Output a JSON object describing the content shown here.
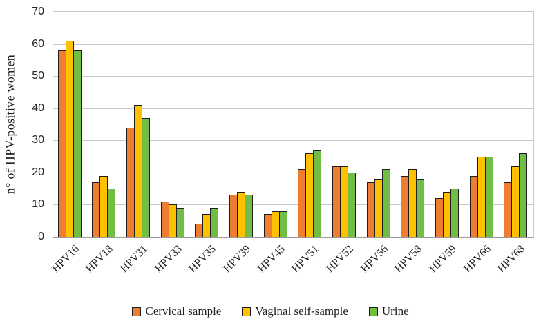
{
  "chart_data": {
    "type": "bar",
    "title": "",
    "xlabel": "",
    "ylabel": "n° of HPV-positive women",
    "ylim": [
      0,
      70
    ],
    "ytick_step": 10,
    "grid": true,
    "legend_position": "bottom",
    "categories": [
      "HPV16",
      "HPV18",
      "HPV31",
      "HPV33",
      "HPV35",
      "HPV39",
      "HPV45",
      "HPV51",
      "HPV52",
      "HPV56",
      "HPV58",
      "HPV59",
      "HPV66",
      "HPV68"
    ],
    "series": [
      {
        "name": "Cervical sample",
        "color": "#ED7D31",
        "values": [
          58,
          17,
          34,
          11,
          4,
          13,
          7,
          21,
          22,
          17,
          19,
          12,
          19,
          17
        ]
      },
      {
        "name": "Vaginal self-sample",
        "color": "#FFC000",
        "values": [
          61,
          19,
          41,
          10,
          7,
          14,
          8,
          26,
          22,
          18,
          21,
          14,
          25,
          22
        ]
      },
      {
        "name": "Urine",
        "color": "#70BF44",
        "values": [
          58,
          15,
          37,
          9,
          9,
          13,
          8,
          27,
          20,
          21,
          18,
          15,
          25,
          26
        ]
      }
    ]
  },
  "colors": {
    "bar_border": "#1e1e1e",
    "gridline": "#c9c9c9",
    "axis_line": "#9b9b9b",
    "text": "#1f1f1f"
  }
}
